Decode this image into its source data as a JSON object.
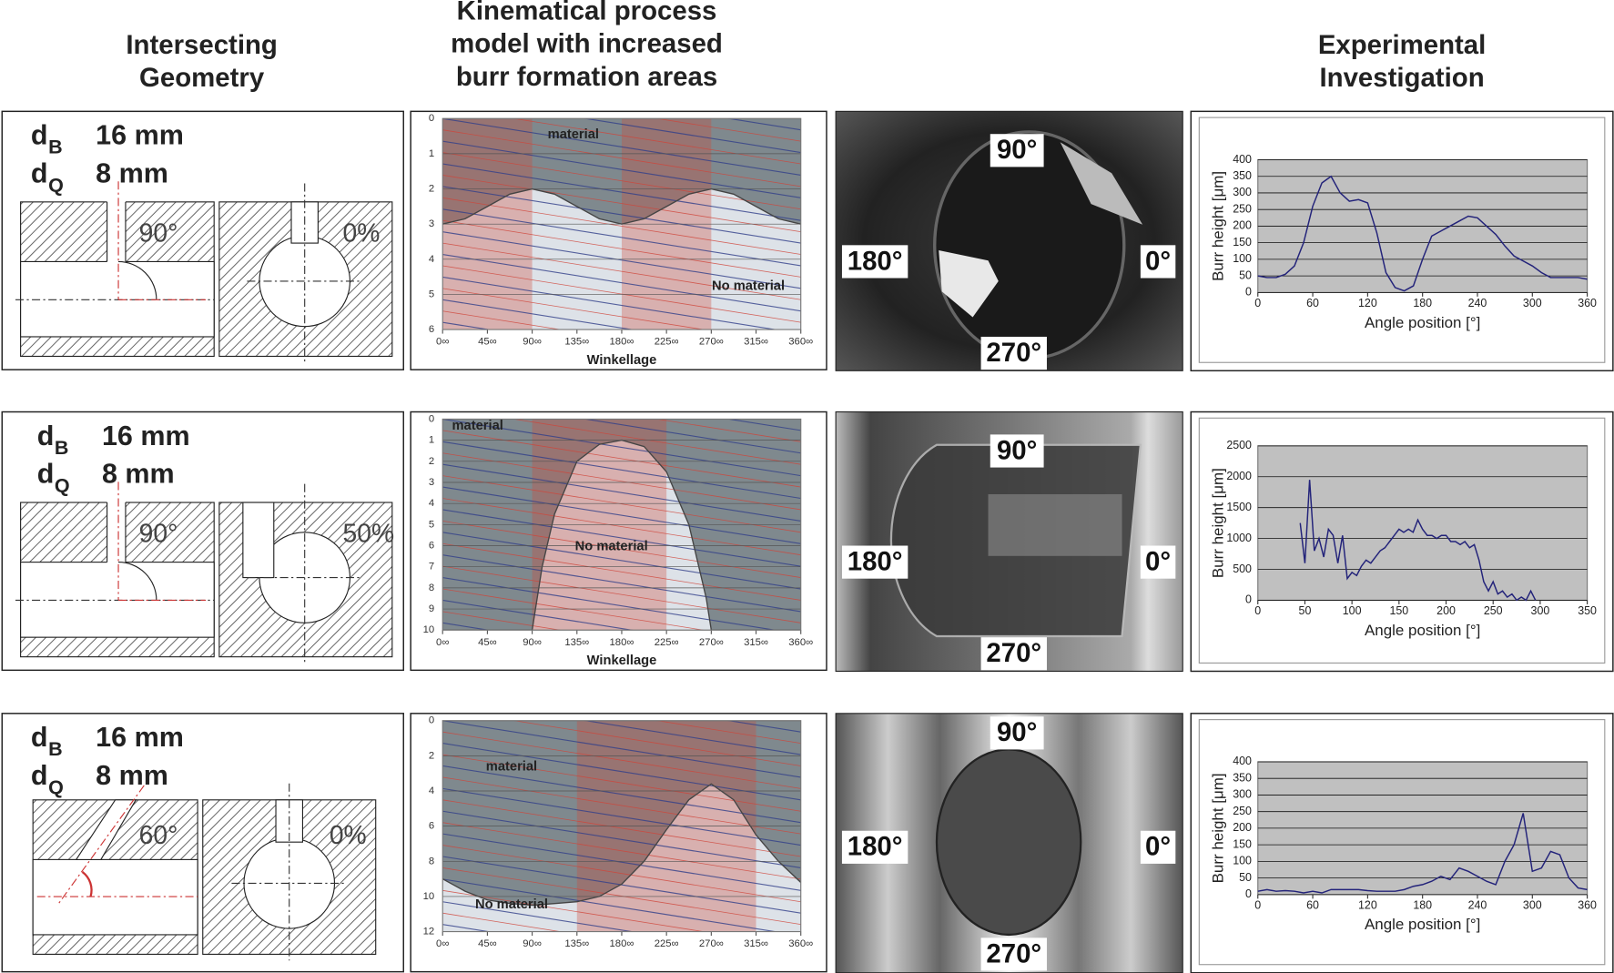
{
  "headers": [
    [
      "Intersecting",
      "Geometry"
    ],
    [
      "Kinematical process",
      "model with increased",
      "burr formation areas"
    ],
    [
      "Experimental",
      "Investigation"
    ]
  ],
  "rows": [
    {
      "geometry": {
        "d1": {
          "symbol": "d",
          "sub": "B",
          "value": "16 mm"
        },
        "d2": {
          "symbol": "d",
          "sub": "Q",
          "value": "8 mm"
        },
        "angle": "90°",
        "offset": "0%"
      },
      "kinematic": {
        "type": "area",
        "y_inverted": true,
        "ylim": [
          0,
          6
        ],
        "yticks": [
          0,
          1,
          2,
          3,
          4,
          5,
          6
        ],
        "xlim": [
          0,
          360
        ],
        "xticks": [
          {
            "value": 0,
            "label": "0∞"
          },
          {
            "value": 45,
            "label": "45∞"
          },
          {
            "value": 90,
            "label": "90∞"
          },
          {
            "value": 135,
            "label": "135∞"
          },
          {
            "value": 180,
            "label": "180∞"
          },
          {
            "value": 225,
            "label": "225∞"
          },
          {
            "value": 270,
            "label": "270∞"
          },
          {
            "value": 315,
            "label": "315∞"
          },
          {
            "value": 360,
            "label": "360∞"
          }
        ],
        "xlabel": "Winkellage",
        "material": "material",
        "no_material": "No material",
        "x": [
          0,
          22.5,
          45,
          67.5,
          90,
          112.5,
          135,
          157.5,
          180,
          202.5,
          225,
          247.5,
          270,
          292.5,
          315,
          337.5,
          360
        ],
        "values": [
          3,
          2.85,
          2.5,
          2.15,
          2,
          2.15,
          2.5,
          2.85,
          3,
          2.85,
          2.5,
          2.15,
          2,
          2.15,
          2.5,
          2.85,
          3
        ],
        "bands": [
          [
            0,
            90
          ],
          [
            180,
            270
          ]
        ]
      },
      "photo": {
        "top": "90°",
        "left": "180°",
        "right": "0°",
        "bottom": "270°"
      },
      "experiment": {
        "type": "line",
        "color": "#23237a",
        "ylabel": "Burr height [μm]",
        "xlabel": "Angle position [°]",
        "xlim": [
          0,
          360
        ],
        "xticks": [
          0,
          60,
          120,
          180,
          240,
          300,
          360
        ],
        "ylim": [
          0,
          400
        ],
        "yticks": [
          0,
          50,
          100,
          150,
          200,
          250,
          300,
          350,
          400
        ],
        "x": [
          0,
          10,
          20,
          30,
          40,
          50,
          60,
          70,
          80,
          90,
          100,
          110,
          120,
          130,
          140,
          150,
          160,
          170,
          180,
          190,
          200,
          210,
          220,
          230,
          240,
          250,
          260,
          270,
          280,
          290,
          300,
          310,
          320,
          330,
          340,
          350,
          360
        ],
        "values": [
          50,
          45,
          45,
          55,
          80,
          150,
          260,
          330,
          350,
          300,
          275,
          280,
          270,
          180,
          60,
          15,
          5,
          20,
          100,
          170,
          185,
          200,
          215,
          230,
          225,
          200,
          175,
          140,
          110,
          95,
          80,
          60,
          45,
          45,
          45,
          45,
          40
        ]
      }
    },
    {
      "geometry": {
        "d1": {
          "symbol": "d",
          "sub": "B",
          "value": "16 mm"
        },
        "d2": {
          "symbol": "d",
          "sub": "Q",
          "value": "8 mm"
        },
        "angle": "90°",
        "offset": "50%"
      },
      "kinematic": {
        "type": "area",
        "y_inverted": true,
        "ylim": [
          0,
          10
        ],
        "yticks": [
          0,
          1,
          2,
          3,
          4,
          5,
          6,
          7,
          8,
          9,
          10
        ],
        "xlim": [
          0,
          360
        ],
        "xticks": [
          {
            "value": 0,
            "label": "0∞"
          },
          {
            "value": 45,
            "label": "45∞"
          },
          {
            "value": 90,
            "label": "90∞"
          },
          {
            "value": 135,
            "label": "135∞"
          },
          {
            "value": 180,
            "label": "180∞"
          },
          {
            "value": 225,
            "label": "225∞"
          },
          {
            "value": 270,
            "label": "270∞"
          },
          {
            "value": 315,
            "label": "315∞"
          },
          {
            "value": 360,
            "label": "360∞"
          }
        ],
        "xlabel": "Winkellage",
        "material": "material",
        "no_material": "No material",
        "x": [
          0,
          90,
          100,
          112.5,
          135,
          157.5,
          180,
          202.5,
          225,
          247.5,
          265,
          270,
          360
        ],
        "values": [
          10,
          10,
          7,
          4.5,
          2,
          1.2,
          1,
          1.3,
          2.5,
          5,
          8.5,
          10,
          10
        ],
        "bands": [
          [
            90,
            225
          ]
        ]
      },
      "photo": {
        "top": "90°",
        "left": "180°",
        "right": "0°",
        "bottom": "270°"
      },
      "experiment": {
        "type": "line",
        "color": "#23237a",
        "ylabel": "Burr height [μm]",
        "xlabel": "Angle position [°]",
        "xlim": [
          0,
          350
        ],
        "xticks": [
          0,
          50,
          100,
          150,
          200,
          250,
          300,
          350
        ],
        "ylim": [
          0,
          2500
        ],
        "yticks": [
          0,
          500,
          1000,
          1500,
          2000,
          2500
        ],
        "x": [
          45,
          50,
          55,
          60,
          65,
          70,
          75,
          80,
          85,
          90,
          95,
          100,
          105,
          110,
          115,
          120,
          125,
          130,
          135,
          140,
          145,
          150,
          155,
          160,
          165,
          170,
          175,
          180,
          185,
          190,
          195,
          200,
          205,
          210,
          215,
          220,
          225,
          230,
          235,
          240,
          245,
          250,
          255,
          260,
          265,
          270,
          275,
          280,
          285,
          290,
          295
        ],
        "values": [
          1250,
          600,
          1950,
          800,
          1000,
          700,
          1150,
          1050,
          600,
          1050,
          350,
          450,
          400,
          550,
          650,
          600,
          700,
          800,
          850,
          950,
          1050,
          1150,
          1100,
          1150,
          1100,
          1300,
          1150,
          1050,
          1050,
          1000,
          1050,
          1050,
          950,
          950,
          900,
          950,
          850,
          900,
          650,
          300,
          150,
          300,
          100,
          150,
          50,
          100,
          0,
          50,
          0,
          150,
          0
        ]
      }
    },
    {
      "geometry": {
        "d1": {
          "symbol": "d",
          "sub": "B",
          "value": "16 mm"
        },
        "d2": {
          "symbol": "d",
          "sub": "Q",
          "value": "8 mm"
        },
        "angle": "60°",
        "offset": "0%"
      },
      "kinematic": {
        "type": "area",
        "y_inverted": true,
        "ylim": [
          0,
          12
        ],
        "yticks": [
          0,
          2,
          4,
          6,
          8,
          10,
          12
        ],
        "xlim": [
          0,
          360
        ],
        "xticks": [
          {
            "value": 0,
            "label": "0∞"
          },
          {
            "value": 45,
            "label": "45∞"
          },
          {
            "value": 90,
            "label": "90∞"
          },
          {
            "value": 135,
            "label": "135∞"
          },
          {
            "value": 180,
            "label": "180∞"
          },
          {
            "value": 225,
            "label": "225∞"
          },
          {
            "value": 270,
            "label": "270∞"
          },
          {
            "value": 315,
            "label": "315∞"
          },
          {
            "value": 360,
            "label": "360∞"
          }
        ],
        "material": "material",
        "no_material": "No material",
        "x": [
          0,
          22.5,
          45,
          67.5,
          90,
          112.5,
          135,
          157.5,
          180,
          202.5,
          225,
          247.5,
          270,
          292.5,
          315,
          337.5,
          360
        ],
        "values": [
          9,
          9.7,
          10.2,
          10.4,
          10.5,
          10.4,
          10.3,
          10,
          9.3,
          8,
          6.2,
          4.5,
          3.6,
          4.5,
          6.5,
          8,
          9.2
        ],
        "bands": [
          [
            135,
            315
          ]
        ]
      },
      "photo": {
        "top": "90°",
        "left": "180°",
        "right": "0°",
        "bottom": "270°"
      },
      "experiment": {
        "type": "line",
        "color": "#23237a",
        "ylabel": "Burr height [μm]",
        "xlabel": "Angle position [°]",
        "xlim": [
          0,
          360
        ],
        "xticks": [
          0,
          60,
          120,
          180,
          240,
          300,
          360
        ],
        "ylim": [
          0,
          400
        ],
        "yticks": [
          0,
          50,
          100,
          150,
          200,
          250,
          300,
          350,
          400
        ],
        "x": [
          0,
          10,
          20,
          30,
          40,
          50,
          60,
          70,
          80,
          90,
          100,
          110,
          120,
          130,
          140,
          150,
          160,
          170,
          180,
          190,
          200,
          210,
          220,
          230,
          240,
          250,
          260,
          270,
          280,
          290,
          300,
          310,
          320,
          330,
          340,
          350,
          360
        ],
        "values": [
          10,
          15,
          10,
          12,
          10,
          5,
          10,
          5,
          15,
          15,
          15,
          15,
          12,
          10,
          10,
          10,
          15,
          25,
          30,
          40,
          55,
          45,
          80,
          70,
          55,
          40,
          30,
          100,
          150,
          245,
          70,
          80,
          130,
          120,
          50,
          20,
          15
        ]
      }
    }
  ]
}
